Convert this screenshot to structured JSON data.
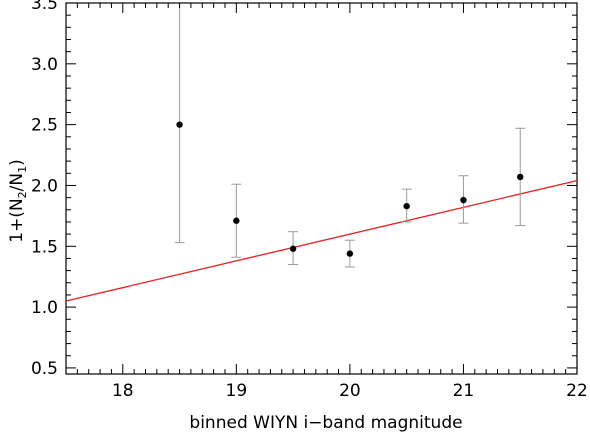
{
  "chart_data": {
    "type": "scatter",
    "title": "",
    "xlabel": "binned WIYN i−band magnitude",
    "ylabel": {
      "prefix": "1+(N",
      "sub1": "2",
      "mid": "/N",
      "sub2": "1",
      "suffix": ")"
    },
    "xlim": [
      17.5,
      22
    ],
    "ylim": [
      0.45,
      3.5
    ],
    "xticks": [
      18,
      19,
      20,
      21,
      22
    ],
    "yticks": [
      0.5,
      1.0,
      1.5,
      2.0,
      2.5,
      3.0,
      3.5
    ],
    "xtick_labels": [
      "18",
      "19",
      "20",
      "21",
      "22"
    ],
    "ytick_labels": [
      "0.5",
      "1.0",
      "1.5",
      "2.0",
      "2.5",
      "3.0",
      "3.5"
    ],
    "grid": false,
    "points": [
      {
        "x": 18.5,
        "y": 2.5,
        "err_low": 1.53,
        "err_high": 3.55
      },
      {
        "x": 19.0,
        "y": 1.71,
        "err_low": 1.41,
        "err_high": 2.01
      },
      {
        "x": 19.5,
        "y": 1.48,
        "err_low": 1.35,
        "err_high": 1.62
      },
      {
        "x": 20.0,
        "y": 1.44,
        "err_low": 1.33,
        "err_high": 1.55
      },
      {
        "x": 20.5,
        "y": 1.83,
        "err_low": 1.7,
        "err_high": 1.97
      },
      {
        "x": 21.0,
        "y": 1.88,
        "err_low": 1.69,
        "err_high": 2.08
      },
      {
        "x": 21.5,
        "y": 2.07,
        "err_low": 1.67,
        "err_high": 2.47
      }
    ],
    "fit_line": {
      "x": [
        17.5,
        22
      ],
      "y": [
        1.05,
        2.04
      ],
      "color": "#e82020"
    },
    "colors": {
      "points": "#000000",
      "errorbars": "#9a9a9a",
      "frame": "#000000"
    }
  }
}
